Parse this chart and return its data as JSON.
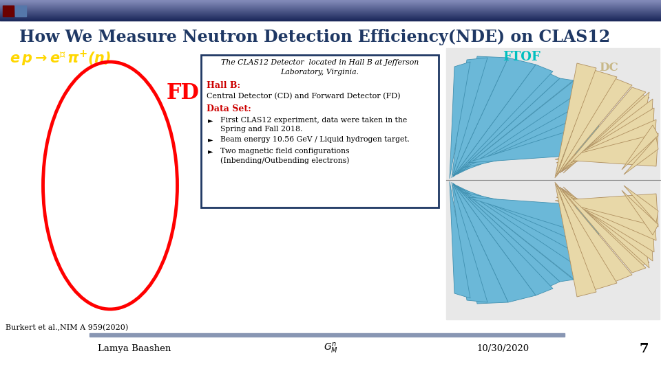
{
  "title": "How We Measure Neutron Detection Efficiency(NDE) on CLAS12",
  "title_color": "#1F3864",
  "title_fontsize": 17,
  "bg_color": "#FFFFFF",
  "equation_color": "#FFD700",
  "fd_label": "FD",
  "fd_color": "#FF0000",
  "box_title1": "The CLAS12 Detector  located in Hall B at Jefferson",
  "box_title2": "Laboratory, Virginia.",
  "hall_b_label": "Hall B:",
  "hall_b_color": "#CC0000",
  "hall_b_text": "Central Detector (CD) and Forward Detector (FD)",
  "dataset_label": "Data Set:",
  "dataset_color": "#CC0000",
  "bullet1a": "First CLAS12 experiment, data were taken in the",
  "bullet1b": "Spring and Fall 2018.",
  "bullet2": "Beam energy 10.56 GeV / Liquid hydrogen target.",
  "bullet3a": "Two magnetic field configurations",
  "bullet3b": "(Inbending/Outbending electrons)",
  "ftof_label": "FTOF",
  "ftof_color": "#00BFBF",
  "dc_label": "DC",
  "dc_color": "#C8B888",
  "footer_author": "Lamya Baashen",
  "footer_date": "10/30/2020",
  "footer_page": "7",
  "footer_bar_color": "#8896B3",
  "citation": "Burkert et al.,NIM A 959(2020)",
  "right_bg": "#E8E8E8",
  "blue_fill": "#6BB8D8",
  "tan_fill": "#E8D8A8",
  "header_sq1": "#6B0000",
  "header_sq2": "#5577AA"
}
